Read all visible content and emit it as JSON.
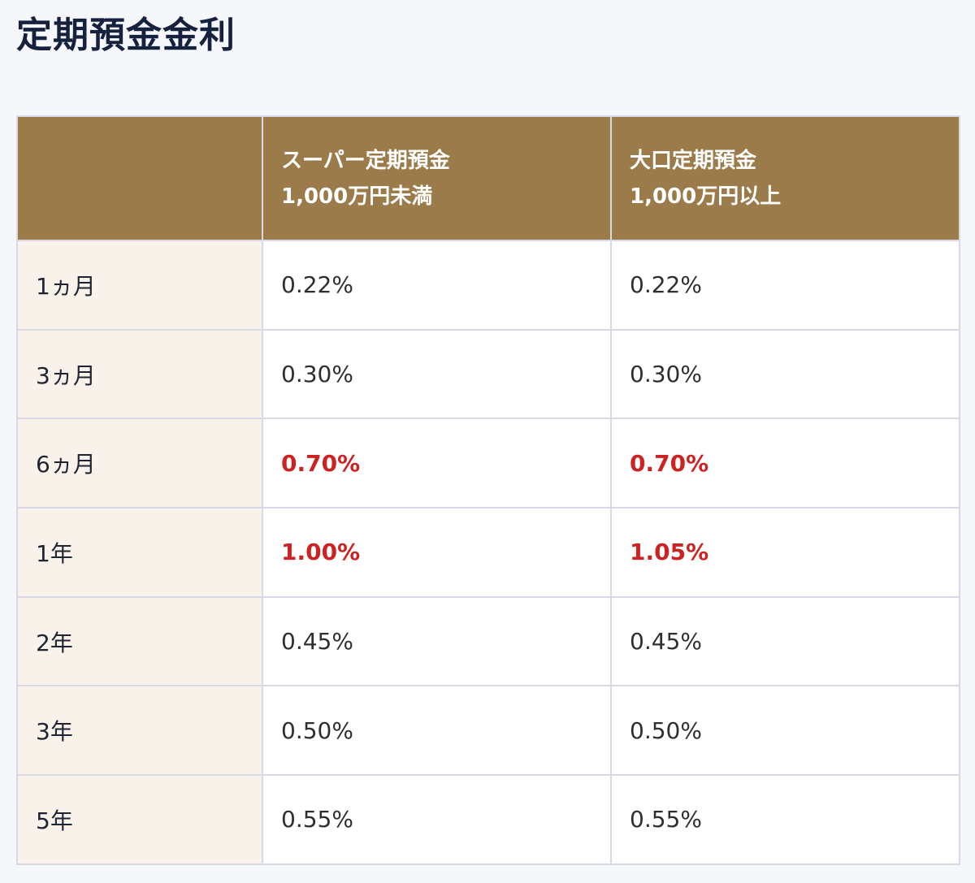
{
  "title": "定期預金金利",
  "table": {
    "headers": [
      {
        "line1": "",
        "line2": ""
      },
      {
        "line1": "スーパー定期預金",
        "line2": "1,000万円未満"
      },
      {
        "line1": "大口定期預金",
        "line2": "1,000万円以上"
      }
    ],
    "rows": [
      {
        "term": "1ヵ月",
        "super": "0.22%",
        "large": "0.22%",
        "highlight": false
      },
      {
        "term": "3ヵ月",
        "super": "0.30%",
        "large": "0.30%",
        "highlight": false
      },
      {
        "term": "6ヵ月",
        "super": "0.70%",
        "large": "0.70%",
        "highlight": true
      },
      {
        "term": "1年",
        "super": "1.00%",
        "large": "1.05%",
        "highlight": true
      },
      {
        "term": "2年",
        "super": "0.45%",
        "large": "0.45%",
        "highlight": false
      },
      {
        "term": "3年",
        "super": "0.50%",
        "large": "0.50%",
        "highlight": false
      },
      {
        "term": "5年",
        "super": "0.55%",
        "large": "0.55%",
        "highlight": false
      }
    ]
  },
  "colors": {
    "header_bg": "#9a7b49",
    "term_bg": "#f8f2ea",
    "highlight": "#cc2222",
    "title": "#16213d",
    "border": "#d9d8e6"
  }
}
